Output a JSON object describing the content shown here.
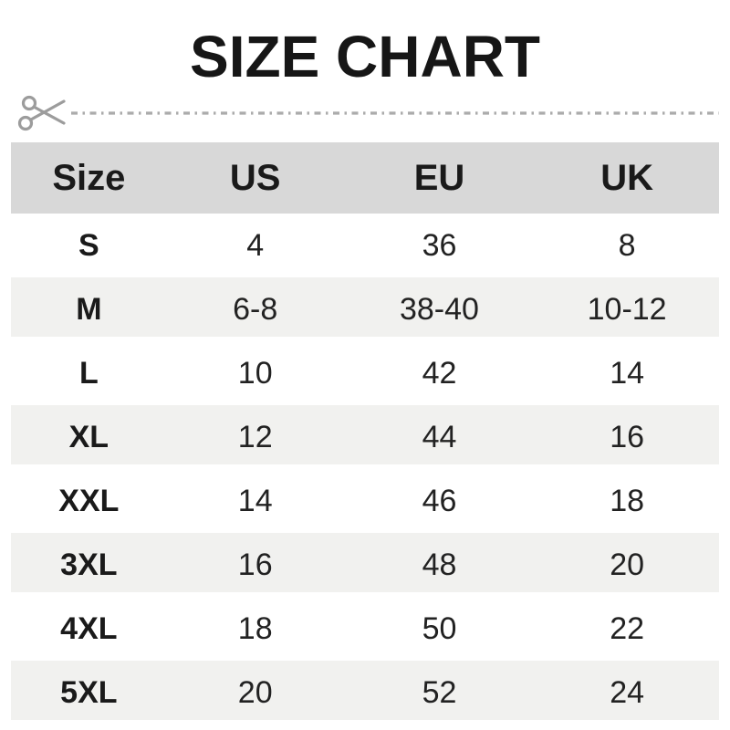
{
  "title": "SIZE CHART",
  "cutline": {
    "scissors_icon": "scissors",
    "line_color": "#ababab",
    "scissors_color": "#9c9c9c"
  },
  "colors": {
    "header_band": "#d8d8d8",
    "striped_row": "#f1f1ef",
    "text": "#1a1a1a",
    "background": "#ffffff"
  },
  "table": {
    "headers": [
      "Size",
      "US",
      "EU",
      "UK"
    ],
    "rows": [
      [
        "S",
        "4",
        "36",
        "8"
      ],
      [
        "M",
        "6-8",
        "38-40",
        "10-12"
      ],
      [
        "L",
        "10",
        "42",
        "14"
      ],
      [
        "XL",
        "12",
        "44",
        "16"
      ],
      [
        "XXL",
        "14",
        "46",
        "18"
      ],
      [
        "3XL",
        "16",
        "48",
        "20"
      ],
      [
        "4XL",
        "18",
        "50",
        "22"
      ],
      [
        "5XL",
        "20",
        "52",
        "24"
      ]
    ]
  },
  "chart_data": {
    "type": "table",
    "title": "SIZE CHART",
    "columns": [
      "Size",
      "US",
      "EU",
      "UK"
    ],
    "rows": [
      {
        "size": "S",
        "us": "4",
        "eu": "36",
        "uk": "8"
      },
      {
        "size": "M",
        "us": "6-8",
        "eu": "38-40",
        "uk": "10-12"
      },
      {
        "size": "L",
        "us": "10",
        "eu": "42",
        "uk": "14"
      },
      {
        "size": "XL",
        "us": "12",
        "eu": "44",
        "uk": "16"
      },
      {
        "size": "XXL",
        "us": "14",
        "eu": "46",
        "uk": "18"
      },
      {
        "size": "3XL",
        "us": "16",
        "eu": "48",
        "uk": "20"
      },
      {
        "size": "4XL",
        "us": "18",
        "eu": "50",
        "uk": "22"
      },
      {
        "size": "5XL",
        "us": "20",
        "eu": "52",
        "uk": "24"
      }
    ],
    "layout_hints": {
      "striped_rows": [
        "M",
        "XL",
        "3XL",
        "5XL"
      ],
      "header_background": "#d8d8d8",
      "stripe_background": "#f1f1ef"
    }
  }
}
